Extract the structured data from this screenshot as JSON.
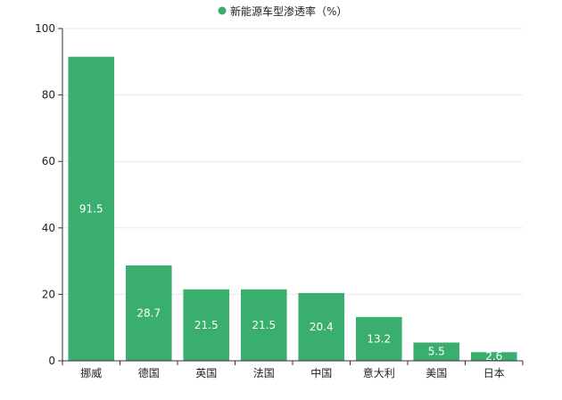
{
  "chart_data": {
    "type": "bar",
    "categories": [
      "挪威",
      "德国",
      "英国",
      "法国",
      "中国",
      "意大利",
      "美国",
      "日本"
    ],
    "series": [
      {
        "name": "新能源车型渗透率（%）",
        "values": [
          91.5,
          28.7,
          21.5,
          21.5,
          20.4,
          13.2,
          5.5,
          2.6
        ]
      }
    ],
    "value_labels": [
      "91.5",
      "28.7",
      "21.5",
      "21.5",
      "20.4",
      "13.2",
      "5.5",
      "2.6"
    ],
    "y_ticks": [
      "0",
      "20",
      "40",
      "60",
      "80",
      "100"
    ],
    "ylim": [
      0,
      100
    ],
    "legend_position": "top-center",
    "grid": "horizontal",
    "colors": {
      "bar": "#3aae6f",
      "legend_dot": "#3aae6f",
      "axis": "#333333",
      "grid": "#e8e8e8",
      "label_inside": "#ffffff",
      "text": "#222222"
    }
  }
}
